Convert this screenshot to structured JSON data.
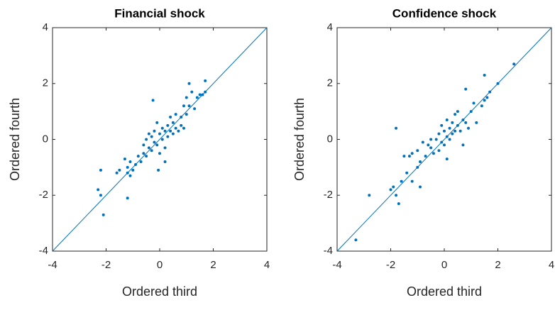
{
  "chart_data": [
    {
      "type": "scatter",
      "title": "Financial shock",
      "xlabel": "Ordered third",
      "ylabel": "Ordered fourth",
      "xlim": [
        -4,
        4
      ],
      "ylim": [
        -4,
        4
      ],
      "xticks": [
        -4,
        -2,
        0,
        2,
        4
      ],
      "yticks": [
        -4,
        -2,
        0,
        2,
        4
      ],
      "color": "#0072BD",
      "diagonal": true,
      "x": [
        -2.3,
        -2.2,
        -2.2,
        -2.1,
        -1.6,
        -1.5,
        -1.3,
        -1.2,
        -1.2,
        -1.1,
        -1.1,
        -1.0,
        -1.2,
        -0.9,
        -0.8,
        -0.7,
        -0.6,
        -0.6,
        -0.5,
        -0.5,
        -0.4,
        -0.4,
        -0.3,
        -0.3,
        -0.25,
        -0.2,
        -0.2,
        -0.1,
        -0.1,
        0.0,
        0.0,
        0.1,
        0.1,
        0.2,
        0.2,
        0.3,
        0.3,
        0.4,
        0.4,
        0.5,
        0.5,
        0.6,
        0.6,
        0.7,
        0.8,
        0.8,
        0.9,
        0.9,
        1.0,
        1.0,
        1.1,
        1.1,
        1.2,
        1.3,
        1.4,
        1.5,
        1.6,
        1.7,
        1.7,
        -0.05,
        0.2
      ],
      "y": [
        -1.8,
        -1.1,
        -2.0,
        -2.7,
        -1.2,
        -1.1,
        -0.7,
        -1.0,
        -1.2,
        -1.3,
        -0.8,
        -1.1,
        -2.1,
        -0.9,
        -0.6,
        -0.8,
        -0.5,
        -0.2,
        -0.6,
        0.0,
        -0.3,
        0.2,
        -0.4,
        0.1,
        1.4,
        0.3,
        -0.1,
        0.6,
        -0.2,
        0.2,
        -0.5,
        0.4,
        0.0,
        0.3,
        -0.3,
        0.5,
        0.1,
        0.8,
        0.3,
        0.2,
        0.6,
        0.9,
        0.4,
        0.3,
        0.8,
        0.5,
        1.2,
        0.4,
        0.9,
        1.5,
        2.0,
        1.2,
        1.7,
        1.1,
        1.5,
        1.6,
        1.6,
        2.1,
        1.7,
        -1.1,
        -0.8
      ]
    },
    {
      "type": "scatter",
      "title": "Confidence shock",
      "xlabel": "Ordered third",
      "ylabel": "Ordered fourth",
      "xlim": [
        -4,
        4
      ],
      "ylim": [
        -4,
        4
      ],
      "xticks": [
        -4,
        -2,
        0,
        2,
        4
      ],
      "yticks": [
        -4,
        -2,
        0,
        2,
        4
      ],
      "color": "#0072BD",
      "diagonal": true,
      "x": [
        -3.3,
        -2.8,
        -2.0,
        -1.9,
        -1.8,
        -1.7,
        -1.6,
        -1.5,
        -1.4,
        -1.3,
        -1.2,
        -1.2,
        -1.0,
        -1.0,
        -0.9,
        -0.8,
        -0.7,
        -1.8,
        -0.6,
        -0.5,
        -0.5,
        -0.4,
        -0.3,
        -0.2,
        -0.2,
        -0.1,
        -0.1,
        0.0,
        0.0,
        0.1,
        0.1,
        0.2,
        0.2,
        0.3,
        0.3,
        0.4,
        0.4,
        0.5,
        0.5,
        0.6,
        0.7,
        0.7,
        0.8,
        0.8,
        0.9,
        1.0,
        1.1,
        1.2,
        1.4,
        1.5,
        1.6,
        1.7,
        1.5,
        2.0,
        2.6,
        -0.9,
        0.1
      ],
      "y": [
        -3.6,
        -2.0,
        -1.8,
        -1.7,
        -2.0,
        -2.3,
        -1.5,
        -0.6,
        -1.2,
        -0.6,
        -0.5,
        -1.5,
        -1.0,
        -0.4,
        -0.8,
        -0.1,
        -0.6,
        0.4,
        -0.2,
        -0.3,
        0.0,
        -0.5,
        0.0,
        -0.4,
        0.2,
        0.5,
        -0.1,
        0.3,
        -0.2,
        0.1,
        0.7,
        0.4,
        0.0,
        0.6,
        0.2,
        0.9,
        0.3,
        0.5,
        1.0,
        0.3,
        0.7,
        -0.2,
        1.8,
        0.6,
        0.4,
        1.0,
        1.3,
        0.6,
        1.2,
        1.4,
        1.5,
        1.7,
        2.3,
        2.0,
        2.7,
        -1.7,
        -0.7
      ]
    }
  ]
}
